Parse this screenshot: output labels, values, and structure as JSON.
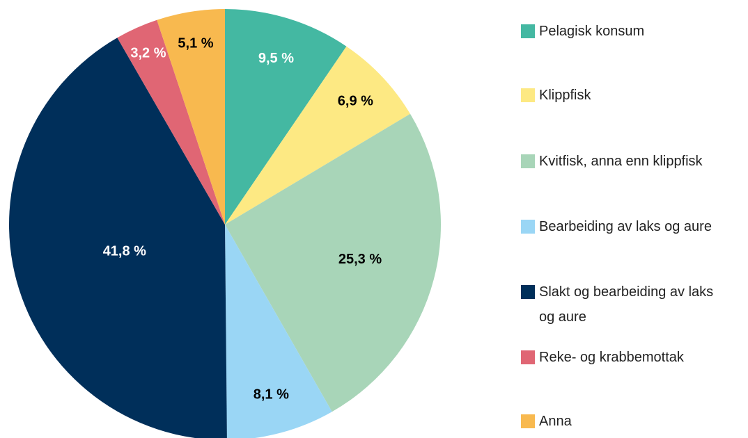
{
  "chart_data": {
    "type": "pie",
    "categories": [
      "Pelagisk konsum",
      "Klippfisk",
      "Kvitfisk, anna enn klippfisk",
      "Bearbeiding av laks og aure",
      "Slakt og bearbeiding av laks og aure",
      "Reke- og krabbemottak",
      "Anna"
    ],
    "values": [
      9.5,
      6.9,
      25.3,
      8.1,
      41.8,
      3.2,
      5.1
    ],
    "value_labels": [
      "9,5 %",
      "6,9 %",
      "25,3 %",
      "8,1 %",
      "41,8 %",
      "3,2 %",
      "5,1 %"
    ],
    "colors": [
      "#44b8a2",
      "#fde983",
      "#a8d5b8",
      "#9ad6f5",
      "#002f5a",
      "#e06674",
      "#f8b94f"
    ],
    "label_colors": [
      "#ffffff",
      "#000000",
      "#000000",
      "#000000",
      "#ffffff",
      "#ffffff",
      "#000000"
    ],
    "legend": "right"
  }
}
